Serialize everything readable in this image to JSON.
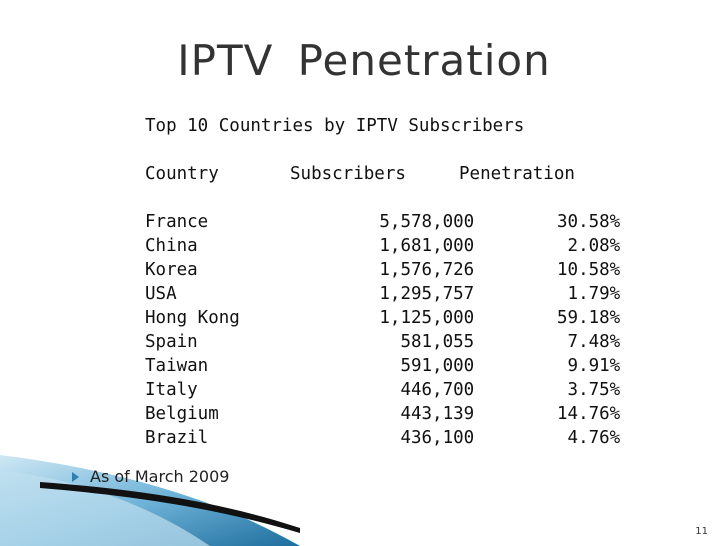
{
  "slide": {
    "title": "IPTV  Penetration",
    "table_title": "Top 10 Countries by IPTV Subscribers",
    "columns": [
      "Country",
      "Subscribers",
      "Penetration"
    ],
    "rows": [
      {
        "country": "France",
        "subscribers": "5,578,000",
        "penetration": "30.58%"
      },
      {
        "country": "China",
        "subscribers": "1,681,000",
        "penetration": "2.08%"
      },
      {
        "country": "Korea",
        "subscribers": "1,576,726",
        "penetration": "10.58%"
      },
      {
        "country": "USA",
        "subscribers": "1,295,757",
        "penetration": "1.79%"
      },
      {
        "country": "Hong Kong",
        "subscribers": "1,125,000",
        "penetration": "59.18%"
      },
      {
        "country": "Spain",
        "subscribers": "581,055",
        "penetration": "7.48%"
      },
      {
        "country": "Taiwan",
        "subscribers": "591,000",
        "penetration": "9.91%"
      },
      {
        "country": "Italy",
        "subscribers": "446,700",
        "penetration": "3.75%"
      },
      {
        "country": "Belgium",
        "subscribers": "443,139",
        "penetration": "14.76%"
      },
      {
        "country": "Brazil",
        "subscribers": "436,100",
        "penetration": "4.76%"
      }
    ],
    "bullet": "As of March 2009",
    "page_number": "11"
  },
  "colors": {
    "accent": "#2f7fb0",
    "accent_light": "#8cc5e3",
    "swoosh_dark": "#111111"
  },
  "icons": {
    "bullet": "triangle-bullet-icon"
  }
}
